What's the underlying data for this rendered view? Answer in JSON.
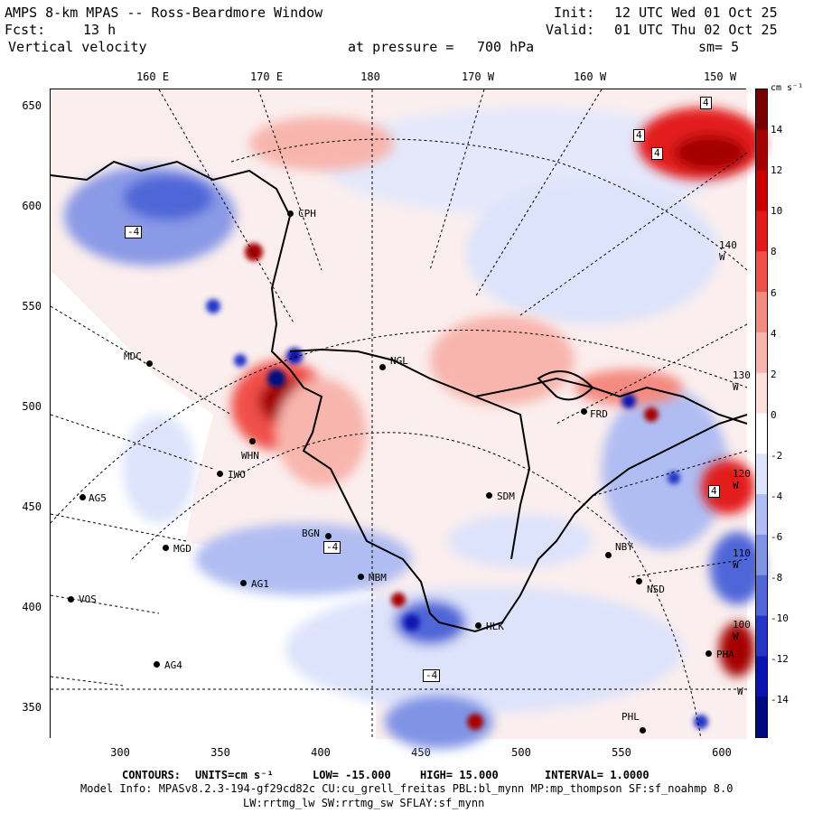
{
  "header": {
    "title": "AMPS 8-km MPAS -- Ross-Beardmore Window",
    "fcst_label": "Fcst:",
    "fcst_value": "13 h",
    "field": "Vertical velocity",
    "level_label": "at pressure =",
    "level_value": "700 hPa",
    "init_label": "Init:",
    "init_value": "12 UTC Wed 01 Oct 25",
    "valid_label": "Valid:",
    "valid_value": "01 UTC Thu 02 Oct 25",
    "smooth": "sm= 5"
  },
  "axes": {
    "y_ticks": [
      "650",
      "600",
      "550",
      "500",
      "450",
      "400",
      "350"
    ],
    "x_ticks": [
      "300",
      "350",
      "400",
      "450",
      "500",
      "550",
      "600"
    ],
    "lon_ticks": [
      "160 E",
      "170 E",
      "180",
      "170 W",
      "160 W",
      "150 W"
    ]
  },
  "colorbar": {
    "units": "cm s⁻¹",
    "labels": [
      "14",
      "12",
      "10",
      "8",
      "6",
      "4",
      "2",
      "0",
      "-2",
      "-4",
      "-6",
      "-8",
      "-10",
      "-12",
      "-14"
    ],
    "colors": [
      "#7a0000",
      "#a50000",
      "#cc0000",
      "#e31a1c",
      "#f0504a",
      "#f58a80",
      "#f8b5ad",
      "#fde0dc",
      "#ffffff",
      "#dde3fb",
      "#b0bdf2",
      "#8094e6",
      "#5066d8",
      "#2436c8",
      "#0a14b0",
      "#000a80"
    ]
  },
  "overlay_labels": {
    "lat1": "140 W",
    "lat2": "130 W",
    "lat3": "120 W",
    "lat4": "110 W",
    "lat5": "100 W",
    "lat6": "W"
  },
  "stations": {
    "cph": "CPH",
    "mdc": "MDC",
    "ngl": "NGL",
    "whn": "WHN",
    "iwo": "IWO",
    "ag5": "AG5",
    "sdm": "SDM",
    "mgd": "MGD",
    "ag1": "AG1",
    "vos": "VOS",
    "ag4": "AG4",
    "bgn": "BGN",
    "mbm": "MBM",
    "hlk": "HLK",
    "nby": "NBY",
    "nsd": "NSD",
    "pha": "PHA",
    "phl": "PHL",
    "frd": "FRD"
  },
  "contour_boxes": {
    "b1": "4",
    "b2": "4",
    "b3": "4",
    "b4": "-4",
    "b5": "4",
    "b6": "-4",
    "b7": "-4"
  },
  "footer": {
    "contours_label": "CONTOURS:",
    "units": "UNITS=cm s⁻¹",
    "low": "LOW= -15.000",
    "high": "HIGH= 15.000",
    "interval": "INTERVAL= 1.0000",
    "model_info": "Model Info: MPASv8.2.3-194-gf29cd82c CU:cu_grell_freitas PBL:bl_mynn MP:mp_thompson SF:sf_noahmp 8.0",
    "model_info2": "LW:rrtmg_lw SW:rrtmg_sw SFLAY:sf_mynn"
  }
}
